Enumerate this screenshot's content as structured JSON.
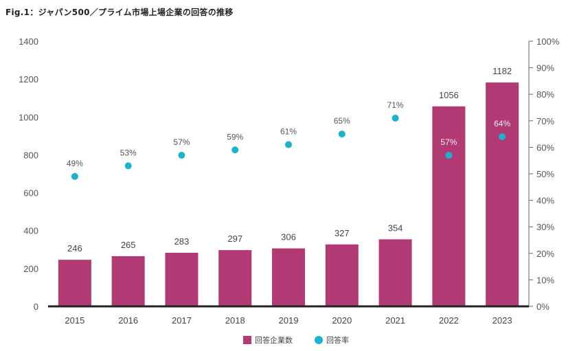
{
  "title": "Fig.1：ジャパン500／プライム市場上場企業の回答の推移",
  "colors": {
    "bar": "#b13a74",
    "dot": "#19b3cc",
    "axis": "#222222",
    "text": "#555555"
  },
  "chart_data": {
    "type": "bar",
    "categories": [
      "2015",
      "2016",
      "2017",
      "2018",
      "2019",
      "2020",
      "2021",
      "2022",
      "2023"
    ],
    "series": [
      {
        "name": "回答企業数",
        "type": "bar",
        "axis": "left",
        "values": [
          246,
          265,
          283,
          297,
          306,
          327,
          354,
          1056,
          1182
        ]
      },
      {
        "name": "回答率",
        "type": "scatter",
        "axis": "right",
        "values": [
          49,
          53,
          57,
          59,
          61,
          65,
          71,
          57,
          64
        ],
        "labels": [
          "49%",
          "53%",
          "57%",
          "59%",
          "61%",
          "65%",
          "71%",
          "57%",
          "64%"
        ]
      }
    ],
    "y_left": {
      "min": 0,
      "max": 1400,
      "ticks": [
        "0",
        "200",
        "400",
        "600",
        "800",
        "1000",
        "1200",
        "1400"
      ]
    },
    "y_right": {
      "min": 0,
      "max": 100,
      "ticks": [
        "0%",
        "10%",
        "20%",
        "30%",
        "40%",
        "50%",
        "60%",
        "70%",
        "80%",
        "90%",
        "100%"
      ]
    },
    "legend": {
      "position": "bottom-center",
      "items": [
        "回答企業数",
        "回答率"
      ]
    },
    "grid": false
  }
}
